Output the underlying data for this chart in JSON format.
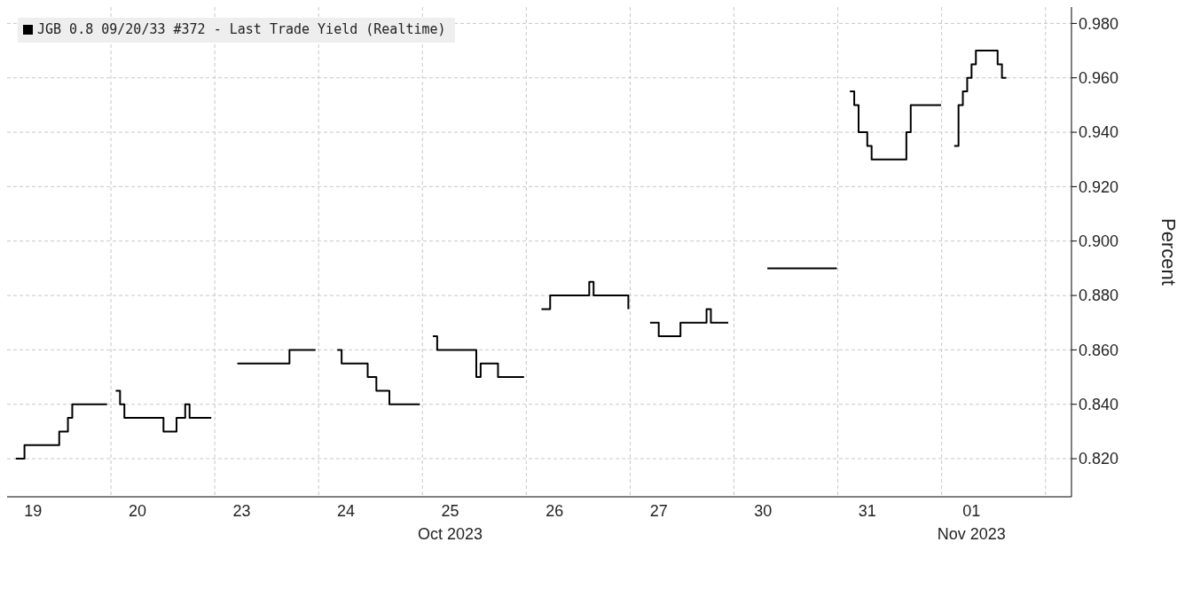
{
  "chart_data": {
    "type": "step",
    "ylabel": "Percent",
    "legend": "top left",
    "grid": true,
    "line_style": "solid",
    "categories": [
      null,
      null,
      null,
      null,
      null,
      null,
      "19",
      null,
      null,
      null,
      null,
      null,
      null,
      null,
      null,
      null,
      null,
      null,
      null,
      null,
      null,
      null,
      null,
      null,
      null,
      null,
      null,
      null,
      null,
      null,
      "20",
      null,
      null,
      null,
      null,
      null,
      null,
      null,
      null,
      null,
      null,
      null,
      null,
      null,
      null,
      null,
      null,
      null,
      null,
      null,
      null,
      null,
      null,
      null,
      "23",
      null,
      null,
      null,
      null,
      null,
      null,
      null,
      null,
      null,
      null,
      null,
      null,
      null,
      null,
      null,
      null,
      null,
      null,
      null,
      null,
      null,
      null,
      null,
      "24",
      null,
      null,
      null,
      null,
      null,
      null,
      null,
      null,
      null,
      null,
      null,
      null,
      null,
      null,
      null,
      null,
      null,
      null,
      null,
      null,
      null,
      null,
      null,
      "25\nOct 2023",
      null,
      null,
      null,
      null,
      null,
      null,
      null,
      null,
      null,
      null,
      null,
      null,
      null,
      null,
      null,
      null,
      null,
      null,
      null,
      null,
      null,
      null,
      null,
      "26",
      null,
      null,
      null,
      null,
      null,
      null,
      null,
      null,
      null,
      null,
      null,
      null,
      null,
      null,
      null,
      null,
      null,
      null,
      null,
      null,
      null,
      null,
      null,
      "27",
      null,
      null,
      null,
      null,
      null,
      null,
      null,
      null,
      null,
      null,
      null,
      null,
      null,
      null,
      null,
      null,
      null,
      null,
      null,
      null,
      null,
      null,
      null,
      "30",
      null,
      null,
      null,
      null,
      null,
      null,
      null,
      null,
      null,
      null,
      null,
      null,
      null,
      null,
      null,
      null,
      null,
      null,
      null,
      null,
      null,
      null,
      null,
      "31",
      null,
      null,
      null,
      null,
      null,
      null,
      null,
      null,
      null,
      null,
      null,
      null,
      null,
      null,
      null,
      null,
      null,
      null,
      null,
      null,
      null,
      null,
      null,
      "01\nNov 2023",
      null,
      null,
      null,
      null,
      null,
      null,
      null,
      null,
      null,
      null,
      null,
      null,
      null,
      null,
      null,
      null,
      null,
      null,
      null,
      null,
      null,
      null,
      null
    ],
    "ylim": [
      0.806,
      0.986
    ],
    "yticks": [
      {
        "value": 0.82,
        "label": "0.820"
      },
      {
        "value": 0.84,
        "label": "0.840"
      },
      {
        "value": 0.86,
        "label": "0.860"
      },
      {
        "value": 0.88,
        "label": "0.880"
      },
      {
        "value": 0.9,
        "label": "0.900"
      },
      {
        "value": 0.92,
        "label": "0.920"
      },
      {
        "value": 0.94,
        "label": "0.940"
      },
      {
        "value": 0.96,
        "label": "0.960"
      },
      {
        "value": 0.98,
        "label": "0.980"
      }
    ],
    "series": [
      {
        "name": "JGB 0.8 09/20/33 #372 - Last Trade Yield (Realtime)",
        "color": "#000000",
        "values": [
          null,
          null,
          0.82,
          0.82,
          0.825,
          0.825,
          0.825,
          0.825,
          0.825,
          0.825,
          0.825,
          0.825,
          0.83,
          0.83,
          0.835,
          0.84,
          0.84,
          0.84,
          0.84,
          0.84,
          0.84,
          0.84,
          0.84,
          0.84,
          null,
          0.845,
          0.84,
          0.835,
          0.835,
          0.835,
          0.835,
          0.835,
          0.835,
          0.835,
          0.835,
          0.835,
          0.83,
          0.83,
          0.83,
          0.835,
          0.835,
          0.84,
          0.835,
          0.835,
          0.835,
          0.835,
          0.835,
          0.835,
          null,
          null,
          null,
          null,
          null,
          0.855,
          0.855,
          0.855,
          0.855,
          0.855,
          0.855,
          0.855,
          0.855,
          0.855,
          0.855,
          0.855,
          0.855,
          0.86,
          0.86,
          0.86,
          0.86,
          0.86,
          0.86,
          0.86,
          null,
          null,
          null,
          null,
          0.86,
          0.855,
          0.855,
          0.855,
          0.855,
          0.855,
          0.855,
          0.85,
          0.85,
          0.845,
          0.845,
          0.845,
          0.84,
          0.84,
          0.84,
          0.84,
          0.84,
          0.84,
          0.84,
          0.84,
          null,
          null,
          0.865,
          0.86,
          0.86,
          0.86,
          0.86,
          0.86,
          0.86,
          0.86,
          0.86,
          0.86,
          0.85,
          0.855,
          0.855,
          0.855,
          0.855,
          0.85,
          0.85,
          0.85,
          0.85,
          0.85,
          0.85,
          0.85,
          null,
          null,
          null,
          0.875,
          0.875,
          0.88,
          0.88,
          0.88,
          0.88,
          0.88,
          0.88,
          0.88,
          0.88,
          0.88,
          0.885,
          0.88,
          0.88,
          0.88,
          0.88,
          0.88,
          0.88,
          0.88,
          0.88,
          0.875,
          null,
          null,
          null,
          null,
          0.87,
          0.87,
          0.865,
          0.865,
          0.865,
          0.865,
          0.865,
          0.87,
          0.87,
          0.87,
          0.87,
          0.87,
          0.87,
          0.875,
          0.87,
          0.87,
          0.87,
          0.87,
          0.87,
          null,
          null,
          null,
          null,
          null,
          null,
          null,
          null,
          0.89,
          0.89,
          0.89,
          0.89,
          0.89,
          0.89,
          0.89,
          0.89,
          0.89,
          0.89,
          0.89,
          0.89,
          0.89,
          0.89,
          0.89,
          0.89,
          0.89,
          null,
          null,
          0.955,
          0.95,
          0.94,
          0.94,
          0.935,
          0.93,
          0.93,
          0.93,
          0.93,
          0.93,
          0.93,
          0.93,
          0.93,
          0.94,
          0.95,
          0.95,
          0.95,
          0.95,
          0.95,
          0.95,
          0.95,
          0.95,
          null,
          null,
          0.935,
          0.95,
          0.955,
          0.96,
          0.965,
          0.97,
          0.97,
          0.97,
          0.97,
          0.97,
          0.965,
          0.96,
          0.96,
          null,
          null,
          null,
          null,
          null,
          null,
          null,
          null,
          null,
          null,
          null,
          null,
          null,
          null,
          null
        ]
      }
    ]
  }
}
